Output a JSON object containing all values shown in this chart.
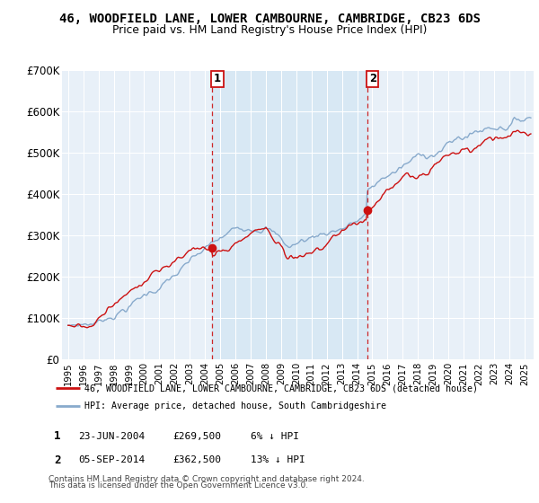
{
  "title": "46, WOODFIELD LANE, LOWER CAMBOURNE, CAMBRIDGE, CB23 6DS",
  "subtitle": "Price paid vs. HM Land Registry's House Price Index (HPI)",
  "ylabel_ticks": [
    "£0",
    "£100K",
    "£200K",
    "£300K",
    "£400K",
    "£500K",
    "£600K",
    "£700K"
  ],
  "ytick_vals": [
    0,
    100000,
    200000,
    300000,
    400000,
    500000,
    600000,
    700000
  ],
  "ylim": [
    0,
    700000
  ],
  "xlim_start": 1994.6,
  "xlim_end": 2025.6,
  "hpi_color": "#88aacc",
  "price_color": "#cc1111",
  "vline_color": "#cc1111",
  "shade_color": "#d8e8f4",
  "sale1_x": 2004.47,
  "sale1_y": 269500,
  "sale2_x": 2014.67,
  "sale2_y": 362500,
  "legend_label1": "46, WOODFIELD LANE, LOWER CAMBOURNE, CAMBRIDGE, CB23 6DS (detached house)",
  "legend_label2": "HPI: Average price, detached house, South Cambridgeshire",
  "note1_box": "1",
  "note1_text": "23-JUN-2004",
  "note1_price": "£269,500",
  "note1_hpi": "6% ↓ HPI",
  "note2_box": "2",
  "note2_text": "05-SEP-2014",
  "note2_price": "£362,500",
  "note2_hpi": "13% ↓ HPI",
  "footnote_line1": "Contains HM Land Registry data © Crown copyright and database right 2024.",
  "footnote_line2": "This data is licensed under the Open Government Licence v3.0.",
  "bg_fig": "#ffffff",
  "bg_plot": "#e8f0f8"
}
